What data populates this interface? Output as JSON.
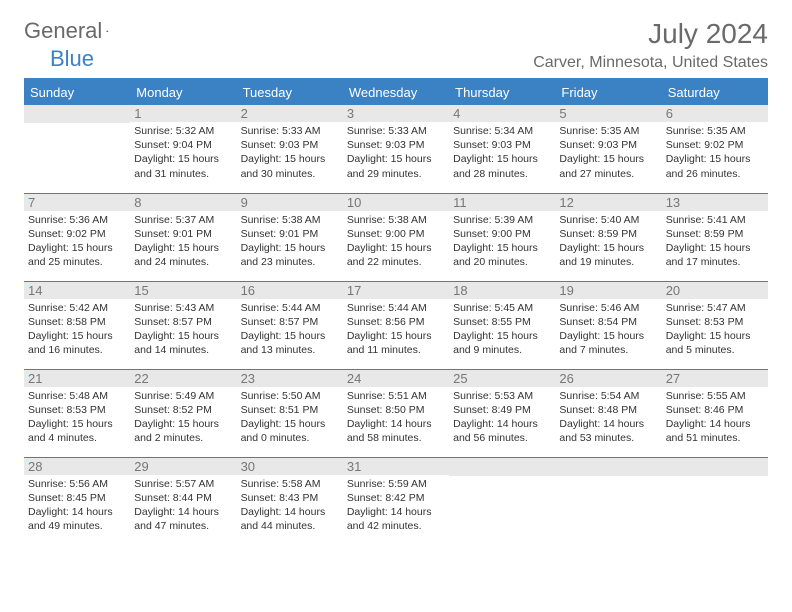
{
  "logo": {
    "textA": "General",
    "textB": "Blue"
  },
  "title": {
    "month": "July 2024",
    "location": "Carver, Minnesota, United States"
  },
  "columns": [
    "Sunday",
    "Monday",
    "Tuesday",
    "Wednesday",
    "Thursday",
    "Friday",
    "Saturday"
  ],
  "weeks": [
    [
      null,
      {
        "n": "1",
        "sr": "Sunrise: 5:32 AM",
        "ss": "Sunset: 9:04 PM",
        "dl1": "Daylight: 15 hours",
        "dl2": "and 31 minutes."
      },
      {
        "n": "2",
        "sr": "Sunrise: 5:33 AM",
        "ss": "Sunset: 9:03 PM",
        "dl1": "Daylight: 15 hours",
        "dl2": "and 30 minutes."
      },
      {
        "n": "3",
        "sr": "Sunrise: 5:33 AM",
        "ss": "Sunset: 9:03 PM",
        "dl1": "Daylight: 15 hours",
        "dl2": "and 29 minutes."
      },
      {
        "n": "4",
        "sr": "Sunrise: 5:34 AM",
        "ss": "Sunset: 9:03 PM",
        "dl1": "Daylight: 15 hours",
        "dl2": "and 28 minutes."
      },
      {
        "n": "5",
        "sr": "Sunrise: 5:35 AM",
        "ss": "Sunset: 9:03 PM",
        "dl1": "Daylight: 15 hours",
        "dl2": "and 27 minutes."
      },
      {
        "n": "6",
        "sr": "Sunrise: 5:35 AM",
        "ss": "Sunset: 9:02 PM",
        "dl1": "Daylight: 15 hours",
        "dl2": "and 26 minutes."
      }
    ],
    [
      {
        "n": "7",
        "sr": "Sunrise: 5:36 AM",
        "ss": "Sunset: 9:02 PM",
        "dl1": "Daylight: 15 hours",
        "dl2": "and 25 minutes."
      },
      {
        "n": "8",
        "sr": "Sunrise: 5:37 AM",
        "ss": "Sunset: 9:01 PM",
        "dl1": "Daylight: 15 hours",
        "dl2": "and 24 minutes."
      },
      {
        "n": "9",
        "sr": "Sunrise: 5:38 AM",
        "ss": "Sunset: 9:01 PM",
        "dl1": "Daylight: 15 hours",
        "dl2": "and 23 minutes."
      },
      {
        "n": "10",
        "sr": "Sunrise: 5:38 AM",
        "ss": "Sunset: 9:00 PM",
        "dl1": "Daylight: 15 hours",
        "dl2": "and 22 minutes."
      },
      {
        "n": "11",
        "sr": "Sunrise: 5:39 AM",
        "ss": "Sunset: 9:00 PM",
        "dl1": "Daylight: 15 hours",
        "dl2": "and 20 minutes."
      },
      {
        "n": "12",
        "sr": "Sunrise: 5:40 AM",
        "ss": "Sunset: 8:59 PM",
        "dl1": "Daylight: 15 hours",
        "dl2": "and 19 minutes."
      },
      {
        "n": "13",
        "sr": "Sunrise: 5:41 AM",
        "ss": "Sunset: 8:59 PM",
        "dl1": "Daylight: 15 hours",
        "dl2": "and 17 minutes."
      }
    ],
    [
      {
        "n": "14",
        "sr": "Sunrise: 5:42 AM",
        "ss": "Sunset: 8:58 PM",
        "dl1": "Daylight: 15 hours",
        "dl2": "and 16 minutes."
      },
      {
        "n": "15",
        "sr": "Sunrise: 5:43 AM",
        "ss": "Sunset: 8:57 PM",
        "dl1": "Daylight: 15 hours",
        "dl2": "and 14 minutes."
      },
      {
        "n": "16",
        "sr": "Sunrise: 5:44 AM",
        "ss": "Sunset: 8:57 PM",
        "dl1": "Daylight: 15 hours",
        "dl2": "and 13 minutes."
      },
      {
        "n": "17",
        "sr": "Sunrise: 5:44 AM",
        "ss": "Sunset: 8:56 PM",
        "dl1": "Daylight: 15 hours",
        "dl2": "and 11 minutes."
      },
      {
        "n": "18",
        "sr": "Sunrise: 5:45 AM",
        "ss": "Sunset: 8:55 PM",
        "dl1": "Daylight: 15 hours",
        "dl2": "and 9 minutes."
      },
      {
        "n": "19",
        "sr": "Sunrise: 5:46 AM",
        "ss": "Sunset: 8:54 PM",
        "dl1": "Daylight: 15 hours",
        "dl2": "and 7 minutes."
      },
      {
        "n": "20",
        "sr": "Sunrise: 5:47 AM",
        "ss": "Sunset: 8:53 PM",
        "dl1": "Daylight: 15 hours",
        "dl2": "and 5 minutes."
      }
    ],
    [
      {
        "n": "21",
        "sr": "Sunrise: 5:48 AM",
        "ss": "Sunset: 8:53 PM",
        "dl1": "Daylight: 15 hours",
        "dl2": "and 4 minutes."
      },
      {
        "n": "22",
        "sr": "Sunrise: 5:49 AM",
        "ss": "Sunset: 8:52 PM",
        "dl1": "Daylight: 15 hours",
        "dl2": "and 2 minutes."
      },
      {
        "n": "23",
        "sr": "Sunrise: 5:50 AM",
        "ss": "Sunset: 8:51 PM",
        "dl1": "Daylight: 15 hours",
        "dl2": "and 0 minutes."
      },
      {
        "n": "24",
        "sr": "Sunrise: 5:51 AM",
        "ss": "Sunset: 8:50 PM",
        "dl1": "Daylight: 14 hours",
        "dl2": "and 58 minutes."
      },
      {
        "n": "25",
        "sr": "Sunrise: 5:53 AM",
        "ss": "Sunset: 8:49 PM",
        "dl1": "Daylight: 14 hours",
        "dl2": "and 56 minutes."
      },
      {
        "n": "26",
        "sr": "Sunrise: 5:54 AM",
        "ss": "Sunset: 8:48 PM",
        "dl1": "Daylight: 14 hours",
        "dl2": "and 53 minutes."
      },
      {
        "n": "27",
        "sr": "Sunrise: 5:55 AM",
        "ss": "Sunset: 8:46 PM",
        "dl1": "Daylight: 14 hours",
        "dl2": "and 51 minutes."
      }
    ],
    [
      {
        "n": "28",
        "sr": "Sunrise: 5:56 AM",
        "ss": "Sunset: 8:45 PM",
        "dl1": "Daylight: 14 hours",
        "dl2": "and 49 minutes."
      },
      {
        "n": "29",
        "sr": "Sunrise: 5:57 AM",
        "ss": "Sunset: 8:44 PM",
        "dl1": "Daylight: 14 hours",
        "dl2": "and 47 minutes."
      },
      {
        "n": "30",
        "sr": "Sunrise: 5:58 AM",
        "ss": "Sunset: 8:43 PM",
        "dl1": "Daylight: 14 hours",
        "dl2": "and 44 minutes."
      },
      {
        "n": "31",
        "sr": "Sunrise: 5:59 AM",
        "ss": "Sunset: 8:42 PM",
        "dl1": "Daylight: 14 hours",
        "dl2": "and 42 minutes."
      },
      null,
      null,
      null
    ]
  ],
  "colors": {
    "accent": "#3b82c4",
    "headerBg": "#3b82c4",
    "dayBg": "#e8e8e8"
  }
}
